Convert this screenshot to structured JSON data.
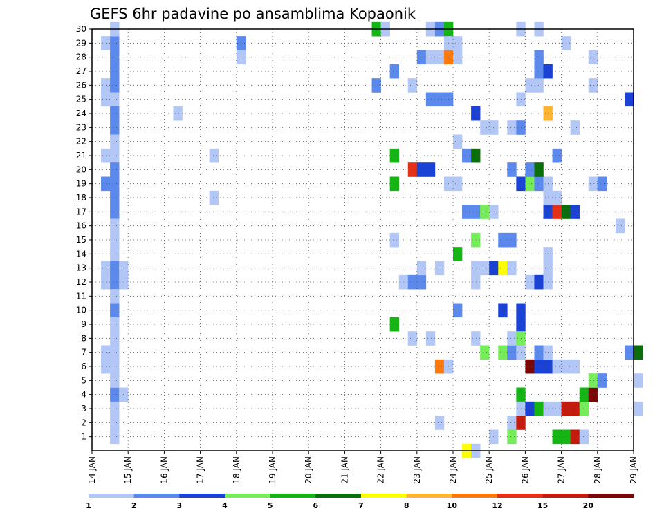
{
  "chart_data": {
    "type": "heatmap",
    "title": "GEFS 6hr padavine po ansamblima Kopaonik",
    "x_start": "14 JAN",
    "x_end": "29 JAN",
    "x_tick_labels": [
      "14 JAN",
      "15 JAN",
      "16 JAN",
      "17 JAN",
      "18 JAN",
      "19 JAN",
      "20 JAN",
      "21 JAN",
      "22 JAN",
      "23 JAN",
      "24 JAN",
      "25 JAN",
      "26 JAN",
      "27 JAN",
      "28 JAN",
      "29 JAN"
    ],
    "y_tick_labels": [
      "1",
      "2",
      "3",
      "4",
      "5",
      "6",
      "7",
      "8",
      "9",
      "10",
      "11",
      "12",
      "13",
      "14",
      "15",
      "16",
      "17",
      "18",
      "19",
      "20",
      "21",
      "22",
      "23",
      "24",
      "25",
      "26",
      "27",
      "28",
      "29",
      "30"
    ],
    "ylim": [
      0,
      30
    ],
    "grid": true,
    "legend": "bottom",
    "colorbar": {
      "labels": [
        "1",
        "2",
        "3",
        "4",
        "5",
        "6",
        "7",
        "8",
        "10",
        "12",
        "15",
        "20"
      ],
      "colors": [
        "#b3c7f7",
        "#5b89ec",
        "#1a43d6",
        "#76ec5a",
        "#15b515",
        "#0a6e0a",
        "#ffff00",
        "#ffb533",
        "#ff7a0c",
        "#e53017",
        "#c41b0f",
        "#7a0606"
      ]
    },
    "cells_note": "each cell: [day offset from 14 JAN, member, level index into colorbar.colors]",
    "cells": [
      [
        0.25,
        29,
        0
      ],
      [
        0.5,
        29,
        1
      ],
      [
        0.25,
        26,
        0
      ],
      [
        0.5,
        26,
        1
      ],
      [
        0.25,
        25,
        0
      ],
      [
        0.5,
        25,
        0
      ],
      [
        0.25,
        21,
        0
      ],
      [
        0.5,
        21,
        0
      ],
      [
        0.25,
        19,
        1
      ],
      [
        0.5,
        19,
        1
      ],
      [
        0.25,
        13,
        0
      ],
      [
        0.5,
        13,
        1
      ],
      [
        0.75,
        13,
        0
      ],
      [
        0.25,
        12,
        0
      ],
      [
        0.5,
        12,
        1
      ],
      [
        0.75,
        12,
        0
      ],
      [
        0.25,
        7,
        0
      ],
      [
        0.5,
        7,
        0
      ],
      [
        0.25,
        6,
        0
      ],
      [
        0.5,
        6,
        0
      ],
      [
        0.5,
        4,
        1
      ],
      [
        0.75,
        4,
        0
      ],
      [
        0.5,
        30,
        0
      ],
      [
        0.5,
        28,
        1
      ],
      [
        0.5,
        27,
        1
      ],
      [
        0.5,
        24,
        1
      ],
      [
        0.5,
        23,
        1
      ],
      [
        0.5,
        22,
        0
      ],
      [
        0.5,
        20,
        1
      ],
      [
        0.5,
        18,
        1
      ],
      [
        0.5,
        17,
        1
      ],
      [
        0.5,
        16,
        0
      ],
      [
        0.5,
        15,
        0
      ],
      [
        0.5,
        14,
        0
      ],
      [
        0.5,
        11,
        0
      ],
      [
        0.5,
        10,
        1
      ],
      [
        0.5,
        9,
        0
      ],
      [
        0.5,
        8,
        0
      ],
      [
        0.5,
        5,
        0
      ],
      [
        0.5,
        3,
        0
      ],
      [
        0.5,
        2,
        0
      ],
      [
        0.5,
        1,
        0
      ],
      [
        2.25,
        24,
        0
      ],
      [
        3.25,
        21,
        0
      ],
      [
        3.25,
        18,
        0
      ],
      [
        4.0,
        29,
        1
      ],
      [
        4.0,
        28,
        0
      ],
      [
        7.75,
        30,
        4
      ],
      [
        8.0,
        30,
        0
      ],
      [
        7.75,
        26,
        1
      ],
      [
        8.25,
        27,
        1
      ],
      [
        8.25,
        21,
        4
      ],
      [
        8.25,
        19,
        4
      ],
      [
        8.25,
        15,
        0
      ],
      [
        8.25,
        9,
        4
      ],
      [
        8.5,
        12,
        0
      ],
      [
        8.75,
        12,
        1
      ],
      [
        9.0,
        12,
        1
      ],
      [
        8.75,
        26,
        0
      ],
      [
        8.75,
        20,
        9
      ],
      [
        9.0,
        20,
        2
      ],
      [
        9.25,
        20,
        2
      ],
      [
        8.75,
        8,
        0
      ],
      [
        9.25,
        30,
        0
      ],
      [
        9.5,
        30,
        1
      ],
      [
        9.75,
        30,
        4
      ],
      [
        9.0,
        28,
        1
      ],
      [
        9.25,
        28,
        0
      ],
      [
        9.5,
        28,
        0
      ],
      [
        9.75,
        28,
        8
      ],
      [
        10.0,
        28,
        0
      ],
      [
        9.75,
        29,
        0
      ],
      [
        10.0,
        29,
        0
      ],
      [
        9.25,
        25,
        1
      ],
      [
        9.5,
        25,
        1
      ],
      [
        9.75,
        25,
        1
      ],
      [
        9.0,
        13,
        0
      ],
      [
        9.5,
        13,
        0
      ],
      [
        9.25,
        8,
        0
      ],
      [
        9.5,
        2,
        0
      ],
      [
        9.5,
        6,
        8
      ],
      [
        9.75,
        6,
        0
      ],
      [
        9.75,
        19,
        0
      ],
      [
        10.0,
        19,
        0
      ],
      [
        10.0,
        22,
        0
      ],
      [
        10.0,
        14,
        4
      ],
      [
        10.0,
        10,
        1
      ],
      [
        10.25,
        21,
        1
      ],
      [
        10.5,
        21,
        5
      ],
      [
        10.5,
        24,
        2
      ],
      [
        10.25,
        0,
        6
      ],
      [
        10.5,
        0,
        0
      ],
      [
        10.25,
        17,
        1
      ],
      [
        10.5,
        17,
        1
      ],
      [
        10.75,
        17,
        3
      ],
      [
        11.0,
        17,
        0
      ],
      [
        10.5,
        15,
        3
      ],
      [
        10.5,
        13,
        0
      ],
      [
        10.75,
        13,
        0
      ],
      [
        10.5,
        12,
        0
      ],
      [
        10.5,
        8,
        0
      ],
      [
        10.75,
        7,
        3
      ],
      [
        11.0,
        1,
        0
      ],
      [
        10.75,
        23,
        0
      ],
      [
        11.0,
        23,
        0
      ],
      [
        11.0,
        13,
        2
      ],
      [
        11.25,
        13,
        6
      ],
      [
        11.5,
        13,
        0
      ],
      [
        11.25,
        15,
        1
      ],
      [
        11.5,
        15,
        1
      ],
      [
        11.25,
        10,
        2
      ],
      [
        11.25,
        7,
        3
      ],
      [
        11.5,
        7,
        1
      ],
      [
        11.5,
        8,
        0
      ],
      [
        11.5,
        2,
        0
      ],
      [
        11.5,
        1,
        3
      ],
      [
        11.5,
        23,
        0
      ],
      [
        11.75,
        23,
        1
      ],
      [
        11.5,
        20,
        1
      ],
      [
        11.75,
        30,
        0
      ],
      [
        11.75,
        25,
        0
      ],
      [
        11.75,
        19,
        2
      ],
      [
        12.0,
        19,
        3
      ],
      [
        12.25,
        19,
        1
      ],
      [
        12.5,
        19,
        0
      ],
      [
        11.75,
        10,
        2
      ],
      [
        11.75,
        9,
        2
      ],
      [
        11.75,
        8,
        3
      ],
      [
        11.75,
        7,
        0
      ],
      [
        11.75,
        4,
        4
      ],
      [
        11.75,
        3,
        0
      ],
      [
        11.75,
        2,
        10
      ],
      [
        12.0,
        3,
        2
      ],
      [
        12.25,
        3,
        4
      ],
      [
        12.5,
        3,
        0
      ],
      [
        12.75,
        3,
        0
      ],
      [
        13.0,
        3,
        10
      ],
      [
        13.25,
        3,
        10
      ],
      [
        13.5,
        3,
        3
      ],
      [
        12.0,
        20,
        1
      ],
      [
        12.25,
        20,
        5
      ],
      [
        12.0,
        12,
        0
      ],
      [
        12.25,
        12,
        2
      ],
      [
        12.5,
        12,
        0
      ],
      [
        12.0,
        6,
        11
      ],
      [
        12.25,
        6,
        2
      ],
      [
        12.5,
        6,
        2
      ],
      [
        12.75,
        6,
        0
      ],
      [
        13.0,
        6,
        0
      ],
      [
        13.25,
        6,
        0
      ],
      [
        12.25,
        7,
        1
      ],
      [
        12.5,
        7,
        0
      ],
      [
        12.0,
        26,
        0
      ],
      [
        12.25,
        26,
        0
      ],
      [
        12.25,
        28,
        1
      ],
      [
        12.25,
        27,
        1
      ],
      [
        12.5,
        27,
        2
      ],
      [
        12.25,
        30,
        0
      ],
      [
        12.5,
        24,
        7
      ],
      [
        12.5,
        14,
        0
      ],
      [
        12.5,
        13,
        0
      ],
      [
        12.75,
        21,
        1
      ],
      [
        12.5,
        17,
        2
      ],
      [
        12.75,
        17,
        9
      ],
      [
        13.0,
        17,
        5
      ],
      [
        13.25,
        17,
        2
      ],
      [
        12.5,
        18,
        0
      ],
      [
        12.75,
        18,
        0
      ],
      [
        12.75,
        1,
        4
      ],
      [
        13.0,
        1,
        4
      ],
      [
        13.25,
        1,
        10
      ],
      [
        13.5,
        1,
        0
      ],
      [
        13.0,
        29,
        0
      ],
      [
        13.25,
        23,
        0
      ],
      [
        13.5,
        4,
        4
      ],
      [
        13.75,
        4,
        11
      ],
      [
        13.75,
        5,
        3
      ],
      [
        14.0,
        5,
        1
      ],
      [
        13.75,
        26,
        0
      ],
      [
        13.75,
        28,
        0
      ],
      [
        13.75,
        19,
        0
      ],
      [
        14.0,
        19,
        1
      ],
      [
        14.5,
        16,
        0
      ],
      [
        14.75,
        25,
        2
      ],
      [
        14.75,
        7,
        1
      ],
      [
        15.0,
        7,
        5
      ],
      [
        15.0,
        5,
        0
      ],
      [
        15.0,
        3,
        0
      ]
    ]
  }
}
